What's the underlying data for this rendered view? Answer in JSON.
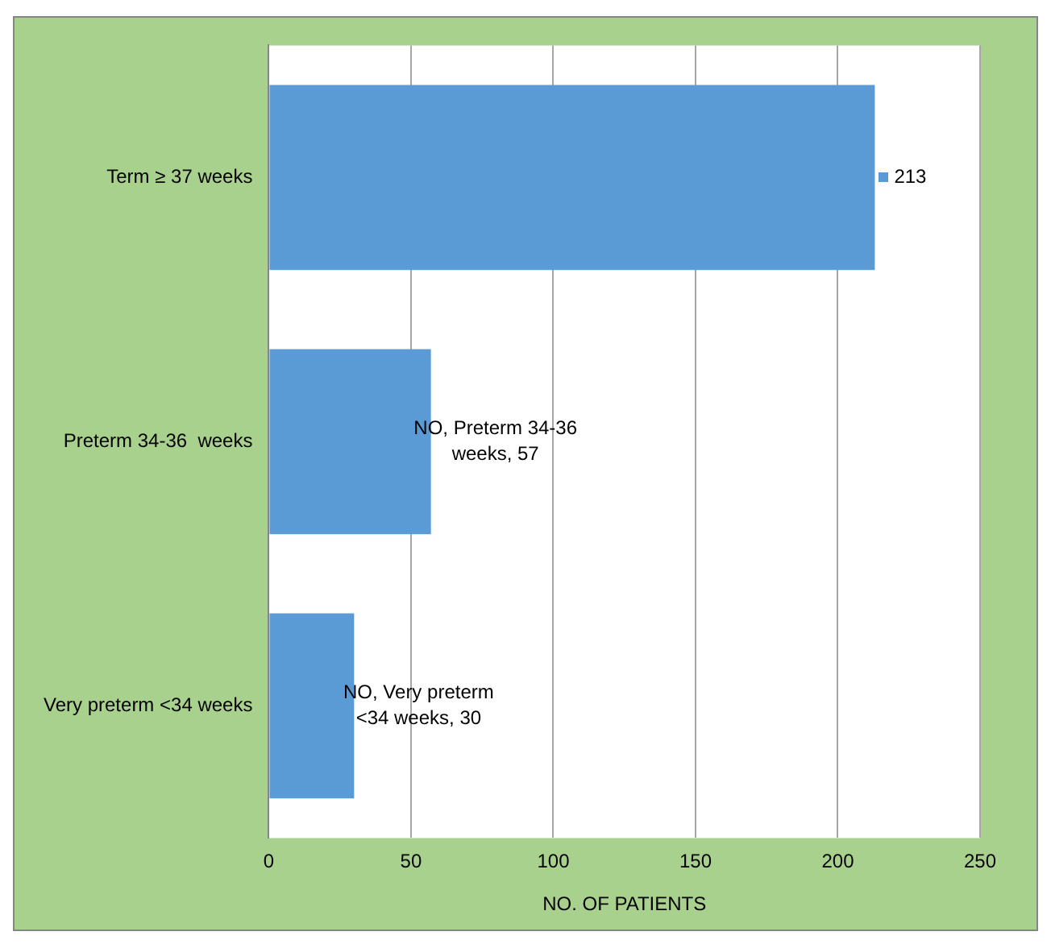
{
  "chart_data": {
    "type": "bar",
    "orientation": "horizontal",
    "xlabel": "NO. OF PATIENTS",
    "categories": [
      "Term ≥ 37 weeks",
      "Preterm 34-36  weeks",
      "Very preterm <34 weeks"
    ],
    "values": [
      213,
      57,
      30
    ],
    "value_labels": [
      "213",
      "NO, Preterm 34-36 weeks, 57",
      "NO, Very preterm <34 weeks, 30"
    ],
    "color": "#5b9bd5",
    "xlim": [
      0,
      250
    ],
    "xticks": [
      0,
      50,
      100,
      150,
      200,
      250
    ],
    "grid": "x",
    "legend": false
  }
}
